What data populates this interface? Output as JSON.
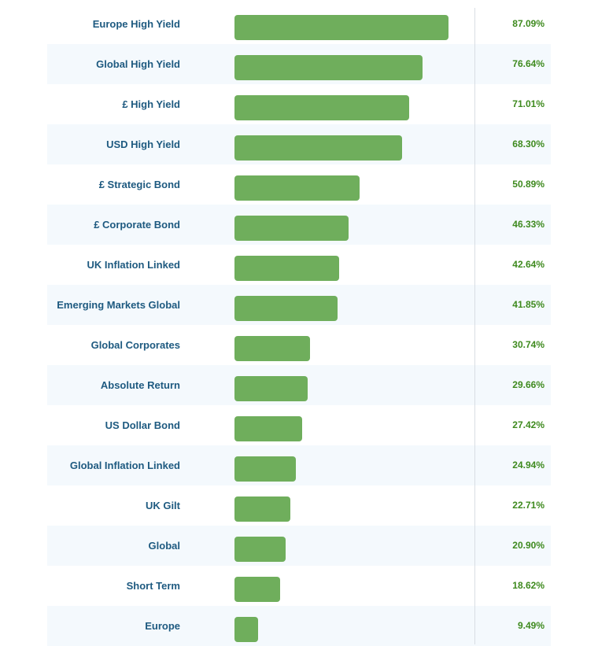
{
  "chart_data": {
    "type": "bar",
    "orientation": "horizontal",
    "categories": [
      "Europe High Yield",
      "Global High Yield",
      "£ High Yield",
      "USD High Yield",
      "£ Strategic Bond",
      "£ Corporate Bond",
      "UK Inflation Linked",
      "Emerging Markets Global",
      "Global Corporates",
      "Absolute Return",
      "US Dollar Bond",
      "Global Inflation Linked",
      "UK Gilt",
      "Global",
      "Short Term",
      "Europe"
    ],
    "values": [
      87.09,
      76.64,
      71.01,
      68.3,
      50.89,
      46.33,
      42.64,
      41.85,
      30.74,
      29.66,
      27.42,
      24.94,
      22.71,
      20.9,
      18.62,
      9.49
    ],
    "value_labels": [
      "87.09%",
      "76.64%",
      "71.01%",
      "68.30%",
      "50.89%",
      "46.33%",
      "42.64%",
      "41.85%",
      "30.74%",
      "29.66%",
      "27.42%",
      "24.94%",
      "22.71%",
      "20.90%",
      "18.62%",
      "9.49%"
    ],
    "unit": "%",
    "xlim": [
      0,
      100
    ],
    "bar_color": "#6fae5c",
    "label_color": "#1e5a80",
    "value_color": "#3e8a1e",
    "alt_row_color": "#f4f9fd"
  }
}
